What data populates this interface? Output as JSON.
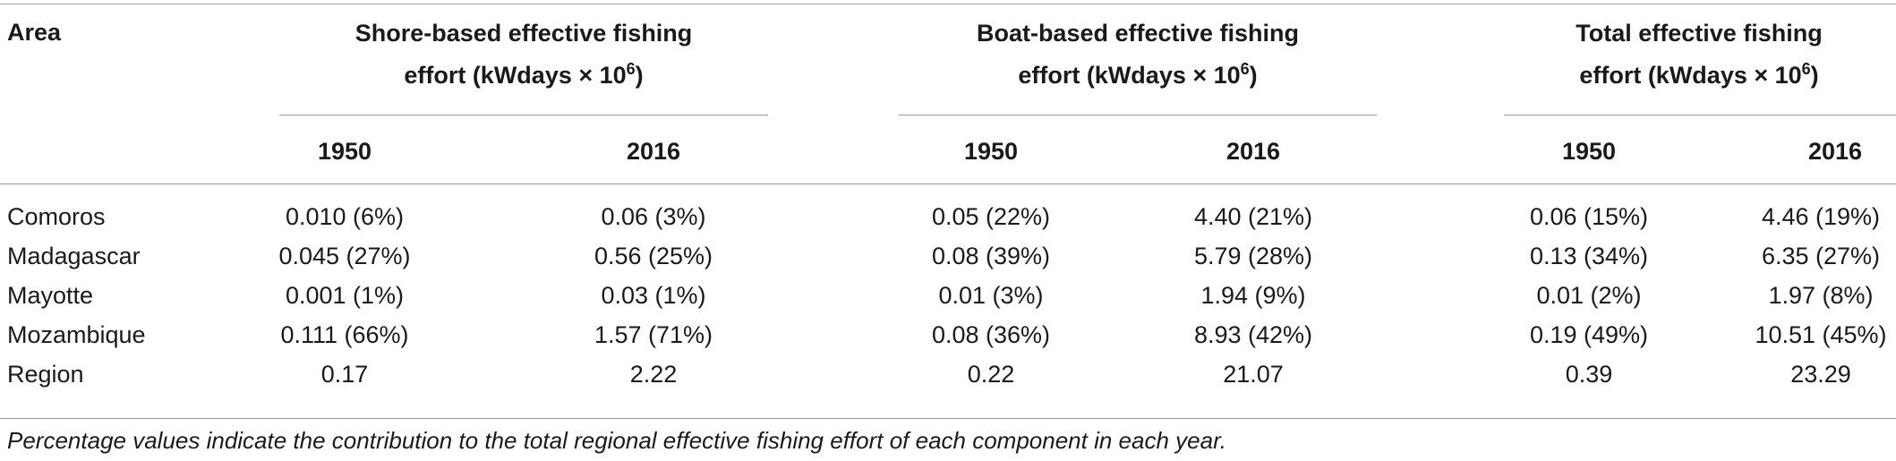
{
  "table": {
    "area_header": "Area",
    "groups": [
      {
        "line1": "Shore-based effective fishing",
        "line2_prefix": "effort (kWdays × 10",
        "sup": "6",
        "line2_suffix": ")"
      },
      {
        "line1": "Boat-based effective fishing",
        "line2_prefix": "effort (kWdays × 10",
        "sup": "6",
        "line2_suffix": ")"
      },
      {
        "line1": "Total effective fishing",
        "line2_prefix": "effort (kWdays × 10",
        "sup": "6",
        "line2_suffix": ")"
      }
    ],
    "years": [
      "1950",
      "2016",
      "1950",
      "2016",
      "1950",
      "2016"
    ],
    "rows": [
      {
        "area": "Comoros",
        "values": [
          "0.010 (6%)",
          "0.06 (3%)",
          "0.05 (22%)",
          "4.40 (21%)",
          "0.06 (15%)",
          "4.46 (19%)"
        ]
      },
      {
        "area": "Madagascar",
        "values": [
          "0.045 (27%)",
          "0.56 (25%)",
          "0.08 (39%)",
          "5.79 (28%)",
          "0.13 (34%)",
          "6.35 (27%)"
        ]
      },
      {
        "area": "Mayotte",
        "values": [
          "0.001 (1%)",
          "0.03 (1%)",
          "0.01 (3%)",
          "1.94 (9%)",
          "0.01 (2%)",
          "1.97 (8%)"
        ]
      },
      {
        "area": "Mozambique",
        "values": [
          "0.111 (66%)",
          "1.57 (71%)",
          "0.08 (36%)",
          "8.93 (42%)",
          "0.19 (49%)",
          "10.51 (45%)"
        ]
      },
      {
        "area": "Region",
        "values": [
          "0.17",
          "2.22",
          "0.22",
          "21.07",
          "0.39",
          "23.29"
        ]
      }
    ],
    "footnote": "Percentage values indicate the contribution to the total regional effective fishing effort of each component in each year."
  }
}
